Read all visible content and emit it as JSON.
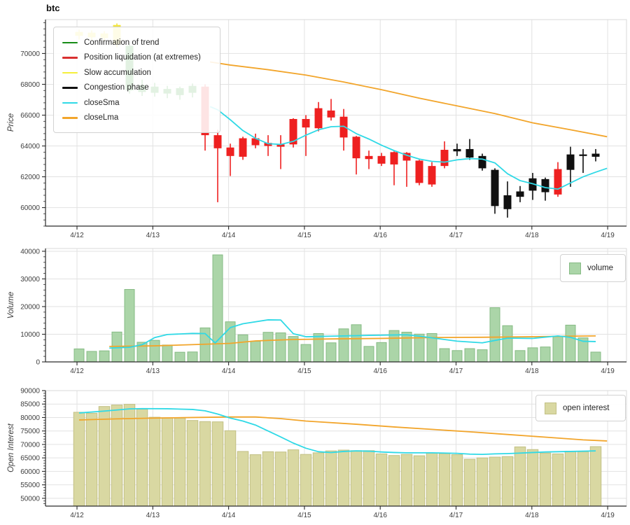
{
  "title": "btc",
  "colors": {
    "grid": "#e2e2e2",
    "frame": "#d9d9d9",
    "axis": "#2a2a2a",
    "tick_text": "#3d3d3d",
    "sma_line": "#2fd9e6",
    "lma_line": "#f2a52b",
    "volume_bar_fill": "#abd5a8",
    "volume_bar_edge": "#86bb84",
    "oi_bar_fill": "#d9d8a2",
    "oi_bar_edge": "#c2c084"
  },
  "phase_colors": {
    "y": "#f2e53c",
    "g": "#168c16",
    "r": "#ee2020",
    "k": "#101010"
  },
  "x_tick_labels": [
    "4/12",
    "4/13",
    "4/14",
    "4/15",
    "4/16",
    "4/17",
    "4/18",
    "4/19"
  ],
  "chart_data": [
    {
      "type": "candlestick",
      "name": "price",
      "ylabel": "Price",
      "ylim": [
        58800,
        72200
      ],
      "yticks": [
        60000,
        62000,
        64000,
        66000,
        68000,
        70000
      ],
      "minor_step": 400,
      "interval": "4h",
      "legend": {
        "position": "upper-left",
        "items": [
          {
            "label": "Confirmation of trend",
            "color": "#168c16",
            "type": "line"
          },
          {
            "label": "Position liquidation (at extremes)",
            "color": "#d93030",
            "type": "line"
          },
          {
            "label": "Slow accumulation",
            "color": "#f5ef3a",
            "type": "line"
          },
          {
            "label": "Congestion phase",
            "color": "#101010",
            "type": "line"
          },
          {
            "label": "closeSma",
            "color": "#2fd9e6",
            "type": "line"
          },
          {
            "label": "closeLma",
            "color": "#f2a52b",
            "type": "line"
          }
        ]
      },
      "candles_note": "each candle: [phase, high, bodyTop, bodyBottom, low]; phase y=slow accumulation, g=confirmation of trend, r=position liquidation, k=congestion",
      "candles": [
        [
          "y",
          71550,
          71400,
          71150,
          70900
        ],
        [
          "y",
          71500,
          71350,
          71050,
          70850
        ],
        [
          "y",
          71450,
          71300,
          71000,
          70800
        ],
        [
          "y",
          71950,
          71850,
          70600,
          70400
        ],
        [
          "g",
          70600,
          70500,
          67600,
          67400
        ],
        [
          "g",
          68300,
          67950,
          67500,
          67250
        ],
        [
          "g",
          68100,
          67850,
          67450,
          67200
        ],
        [
          "g",
          67900,
          67700,
          67400,
          67100
        ],
        [
          "g",
          67850,
          67750,
          67300,
          67000
        ],
        [
          "g",
          68050,
          67900,
          67450,
          67150
        ],
        [
          "r",
          68000,
          67850,
          64700,
          63700
        ],
        [
          "r",
          65050,
          64700,
          63850,
          60350
        ],
        [
          "r",
          64150,
          63900,
          63350,
          62050
        ],
        [
          "r",
          64600,
          64500,
          63300,
          63100
        ],
        [
          "r",
          64800,
          64500,
          64050,
          63850
        ],
        [
          "r",
          64700,
          64200,
          64000,
          63350
        ],
        [
          "r",
          64700,
          64100,
          63950,
          62500
        ],
        [
          "r",
          65800,
          65750,
          64100,
          63900
        ],
        [
          "r",
          66000,
          65750,
          65200,
          63350
        ],
        [
          "r",
          66850,
          66450,
          65150,
          64950
        ],
        [
          "r",
          67050,
          66300,
          65850,
          65650
        ],
        [
          "r",
          66400,
          65900,
          64550,
          63700
        ],
        [
          "r",
          64650,
          64600,
          63200,
          62150
        ],
        [
          "r",
          63700,
          63350,
          63150,
          62500
        ],
        [
          "r",
          63550,
          63350,
          62850,
          62700
        ],
        [
          "r",
          63650,
          63600,
          62800,
          61450
        ],
        [
          "r",
          63600,
          63550,
          63050,
          61350
        ],
        [
          "r",
          63100,
          63050,
          61600,
          61450
        ],
        [
          "r",
          62950,
          62700,
          61500,
          61350
        ],
        [
          "r",
          64300,
          63750,
          62700,
          62550
        ],
        [
          "k",
          64150,
          63800,
          63650,
          63350
        ],
        [
          "k",
          64450,
          63800,
          63250,
          63100
        ],
        [
          "k",
          63500,
          63350,
          62550,
          62400
        ],
        [
          "k",
          62550,
          62450,
          60100,
          59600
        ],
        [
          "k",
          61700,
          60800,
          59900,
          59350
        ],
        [
          "k",
          61400,
          61050,
          60700,
          60350
        ],
        [
          "k",
          62250,
          61900,
          61100,
          60500
        ],
        [
          "k",
          61950,
          61850,
          61000,
          60450
        ],
        [
          "r",
          62950,
          62500,
          60850,
          60700
        ],
        [
          "k",
          63950,
          63450,
          62450,
          61350
        ],
        [
          "k",
          63800,
          63450,
          63350,
          62250
        ],
        [
          "k",
          63800,
          63500,
          63300,
          63000
        ]
      ],
      "sma": [
        [
          10.4,
          66550
        ],
        [
          11,
          66350
        ],
        [
          12,
          65700
        ],
        [
          13,
          65000
        ],
        [
          14,
          64500
        ],
        [
          15,
          64150
        ],
        [
          16,
          64100
        ],
        [
          17,
          64300
        ],
        [
          18,
          64700
        ],
        [
          19,
          65050
        ],
        [
          20,
          65250
        ],
        [
          21,
          65280
        ],
        [
          22,
          64800
        ],
        [
          23,
          64450
        ],
        [
          24,
          64050
        ],
        [
          25,
          63700
        ],
        [
          26,
          63400
        ],
        [
          27,
          63150
        ],
        [
          28,
          63000
        ],
        [
          29,
          62950
        ],
        [
          30,
          63100
        ],
        [
          31,
          63180
        ],
        [
          32,
          63150
        ],
        [
          33,
          62900
        ],
        [
          34,
          62200
        ],
        [
          35,
          61750
        ],
        [
          36,
          61550
        ],
        [
          37,
          61300
        ],
        [
          38,
          61200
        ],
        [
          39,
          61600
        ],
        [
          40,
          62000
        ],
        [
          41,
          62300
        ],
        [
          41.9,
          62550
        ]
      ],
      "lma": [
        [
          10.4,
          69450
        ],
        [
          12,
          69250
        ],
        [
          15,
          68950
        ],
        [
          18,
          68600
        ],
        [
          21,
          68150
        ],
        [
          24,
          67650
        ],
        [
          27,
          67100
        ],
        [
          30,
          66600
        ],
        [
          33,
          66100
        ],
        [
          36,
          65500
        ],
        [
          39,
          65050
        ],
        [
          41.9,
          64600
        ]
      ]
    },
    {
      "type": "bar",
      "name": "volume",
      "ylabel": "Volume",
      "ylim": [
        0,
        41000
      ],
      "yticks": [
        0,
        10000,
        20000,
        30000,
        40000
      ],
      "minor_step": 2000,
      "legend": {
        "position": "upper-right",
        "items": [
          {
            "label": "volume",
            "color": "#abd5a8",
            "edge": "#86bb84",
            "type": "patch"
          }
        ]
      },
      "values": [
        4700,
        3800,
        4000,
        10800,
        26200,
        7100,
        7800,
        6100,
        3500,
        3600,
        12300,
        38700,
        14500,
        9800,
        7500,
        10700,
        10500,
        9200,
        6300,
        10250,
        6900,
        11950,
        13450,
        5600,
        7000,
        11350,
        10750,
        10050,
        10250,
        4800,
        4100,
        4800,
        4400,
        19600,
        13100,
        4100,
        5100,
        5400,
        9300,
        13300,
        8700,
        3550
      ],
      "sma": [
        [
          2.4,
          5000
        ],
        [
          4,
          5300
        ],
        [
          5,
          6200
        ],
        [
          6,
          8800
        ],
        [
          7,
          9900
        ],
        [
          9,
          10300
        ],
        [
          10,
          10250
        ],
        [
          10.8,
          6850
        ],
        [
          12,
          12400
        ],
        [
          13,
          13800
        ],
        [
          15,
          15200
        ],
        [
          16,
          15150
        ],
        [
          17,
          10200
        ],
        [
          18,
          9100
        ],
        [
          20,
          9300
        ],
        [
          23,
          9600
        ],
        [
          26,
          9800
        ],
        [
          27,
          9300
        ],
        [
          28,
          8700
        ],
        [
          30,
          7500
        ],
        [
          32,
          6900
        ],
        [
          34,
          8600
        ],
        [
          36,
          8500
        ],
        [
          38,
          9400
        ],
        [
          39,
          8900
        ],
        [
          40,
          7450
        ],
        [
          41,
          7350
        ]
      ],
      "lma": [
        [
          2.4,
          5600
        ],
        [
          6,
          5800
        ],
        [
          10,
          6400
        ],
        [
          12,
          6700
        ],
        [
          14,
          7600
        ],
        [
          17,
          8100
        ],
        [
          20,
          8300
        ],
        [
          24,
          8500
        ],
        [
          28,
          8800
        ],
        [
          32,
          8900
        ],
        [
          36,
          9100
        ],
        [
          39,
          9300
        ],
        [
          41,
          9400
        ]
      ]
    },
    {
      "type": "bar",
      "name": "open-interest",
      "ylabel": "Open Interest",
      "ylim": [
        47100,
        90000
      ],
      "yticks": [
        50000,
        55000,
        60000,
        65000,
        70000,
        75000,
        80000,
        85000,
        90000
      ],
      "minor_step": 1000,
      "legend": {
        "position": "upper-right",
        "items": [
          {
            "label": "open interest",
            "color": "#d9d8a2",
            "edge": "#c2c084",
            "type": "patch"
          }
        ]
      },
      "values": [
        81950,
        81600,
        84100,
        84650,
        84900,
        83100,
        80100,
        79900,
        79800,
        78900,
        78500,
        78400,
        75100,
        67400,
        66200,
        67300,
        67200,
        68000,
        66300,
        66900,
        67600,
        67900,
        67700,
        67700,
        66500,
        65900,
        66300,
        65800,
        66800,
        66600,
        66200,
        64500,
        65000,
        65300,
        65500,
        69100,
        68100,
        66800,
        66500,
        67500,
        67300,
        69200
      ],
      "sma": [
        [
          0,
          81700
        ],
        [
          2,
          82400
        ],
        [
          4,
          83200
        ],
        [
          5,
          83300
        ],
        [
          7,
          83250
        ],
        [
          9,
          83000
        ],
        [
          10,
          82500
        ],
        [
          11,
          81300
        ],
        [
          12,
          79800
        ],
        [
          13,
          78700
        ],
        [
          14,
          77200
        ],
        [
          15,
          75000
        ],
        [
          16,
          72800
        ],
        [
          17,
          70500
        ],
        [
          18,
          68600
        ],
        [
          19,
          67300
        ],
        [
          20,
          67000
        ],
        [
          21,
          67400
        ],
        [
          22,
          67600
        ],
        [
          23,
          67500
        ],
        [
          24,
          67200
        ],
        [
          25,
          67000
        ],
        [
          26,
          66900
        ],
        [
          28,
          66900
        ],
        [
          30,
          66700
        ],
        [
          31,
          66400
        ],
        [
          32,
          66300
        ],
        [
          33,
          66500
        ],
        [
          34,
          66600
        ],
        [
          35,
          66800
        ],
        [
          36,
          67000
        ],
        [
          37,
          67200
        ],
        [
          39,
          67400
        ],
        [
          41,
          67600
        ]
      ],
      "lma": [
        [
          0,
          79100
        ],
        [
          3,
          79500
        ],
        [
          6,
          79800
        ],
        [
          9,
          80000
        ],
        [
          12,
          80200
        ],
        [
          14,
          80200
        ],
        [
          16,
          79600
        ],
        [
          18,
          78700
        ],
        [
          19,
          78400
        ],
        [
          22,
          77500
        ],
        [
          25,
          76500
        ],
        [
          28,
          75600
        ],
        [
          31,
          74700
        ],
        [
          34,
          73700
        ],
        [
          37,
          72700
        ],
        [
          40,
          71700
        ],
        [
          41.9,
          71300
        ]
      ]
    }
  ]
}
